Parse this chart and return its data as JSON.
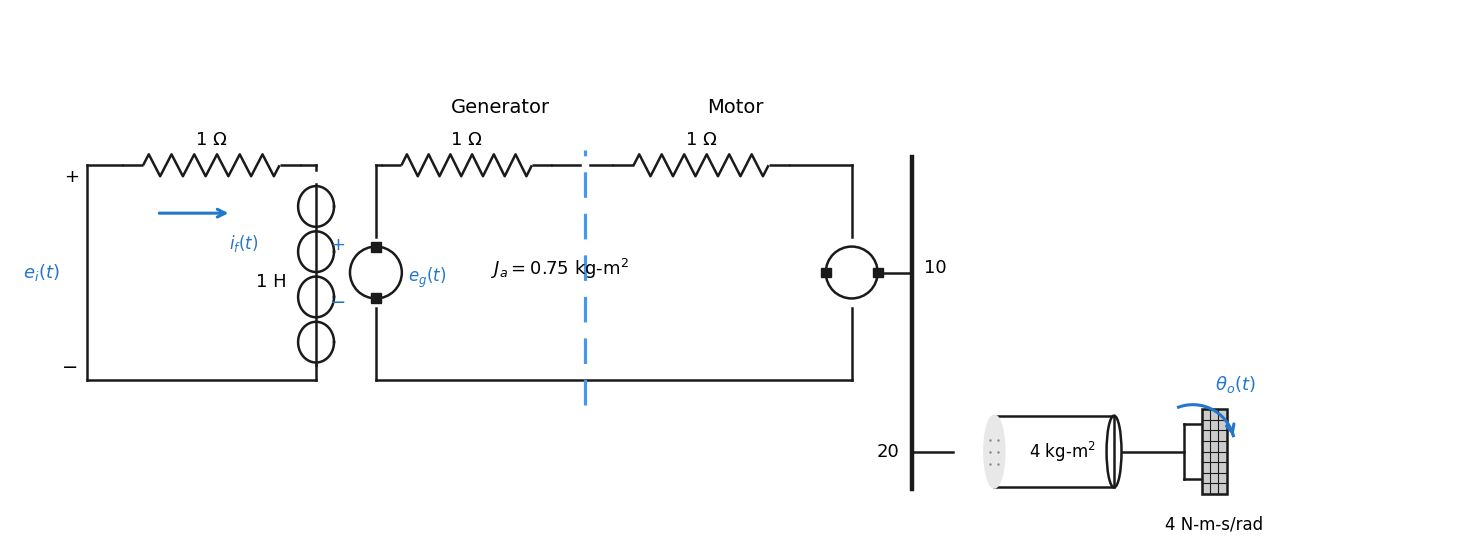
{
  "bg": "#ffffff",
  "lc": "#1a1a1a",
  "bc": "#2277cc",
  "dc": "#4499ee",
  "fig_w": 14.65,
  "fig_h": 5.5,
  "res1_label": "1 Ω",
  "res2_label": "1 Ω",
  "res3_label": "1 Ω",
  "ind_label": "1 H",
  "gen_label": "Generator",
  "mot_label": "Motor",
  "Ja_label": "J_a = 0.75 kg-m²",
  "mass_label": "4 kg-m²",
  "damp_label": "4 N-m-s/rad",
  "gear_top": "10",
  "gear_bot": "20",
  "theta_label": "θ_o(t)",
  "ei_label": "e_i(t)",
  "if_label": "i_f(t)",
  "eg_label": "e_g(t)"
}
